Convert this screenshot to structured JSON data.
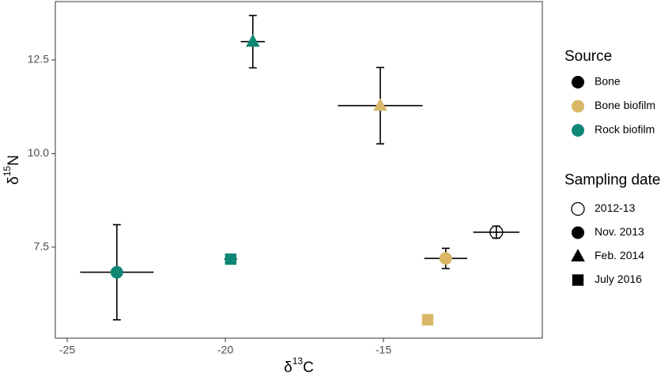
{
  "chart_data": {
    "type": "scatter",
    "xlabel": [
      "δ",
      "13",
      "C"
    ],
    "ylabel": [
      "δ",
      "15",
      "N"
    ],
    "xlim": [
      -25.375,
      -9.975
    ],
    "ylim": [
      5.07,
      14.06
    ],
    "xticks": [
      -25,
      -20,
      -15
    ],
    "yticks": [
      7.5,
      {
        "value": 10,
        "label": "10.0"
      },
      12.5
    ],
    "legends": [
      {
        "title": "Source",
        "entries": [
          {
            "label": "Bone",
            "color": "#000000"
          },
          {
            "label": "Bone biofilm",
            "color": "#d9b767"
          },
          {
            "label": "Rock biofilm",
            "color": "#0f8774"
          }
        ]
      },
      {
        "title": "Sampling date",
        "entries": [
          {
            "label": "2012-13",
            "shape": "open-circle"
          },
          {
            "label": "Nov. 2013",
            "shape": "circle"
          },
          {
            "label": "Feb. 2014",
            "shape": "triangle"
          },
          {
            "label": "July 2016",
            "shape": "square"
          }
        ]
      }
    ],
    "points": [
      {
        "source": "Rock biofilm",
        "date": "Nov. 2013",
        "x": -23.43,
        "y": 6.83,
        "xerr": 1.16,
        "yerr": 1.27
      },
      {
        "source": "Rock biofilm",
        "date": "July 2016",
        "x": -19.83,
        "y": 7.18,
        "xerr": 0.2,
        "yerr": 0.05
      },
      {
        "source": "Rock biofilm",
        "date": "Feb. 2014",
        "x": -19.13,
        "y": 12.99,
        "xerr": 0.38,
        "yerr": 0.7
      },
      {
        "source": "Bone biofilm",
        "date": "Feb. 2014",
        "x": -15.1,
        "y": 11.28,
        "xerr": 1.34,
        "yerr": 1.02
      },
      {
        "source": "Bone biofilm",
        "date": "Nov. 2013",
        "x": -13.03,
        "y": 7.2,
        "xerr": 0.68,
        "yerr": 0.27
      },
      {
        "source": "Bone biofilm",
        "date": "July 2016",
        "x": -13.6,
        "y": 5.56
      },
      {
        "source": "Bone",
        "date": "2012-13",
        "x": -11.43,
        "y": 7.9,
        "xerr": 0.73,
        "yerr": 0.16
      }
    ]
  }
}
